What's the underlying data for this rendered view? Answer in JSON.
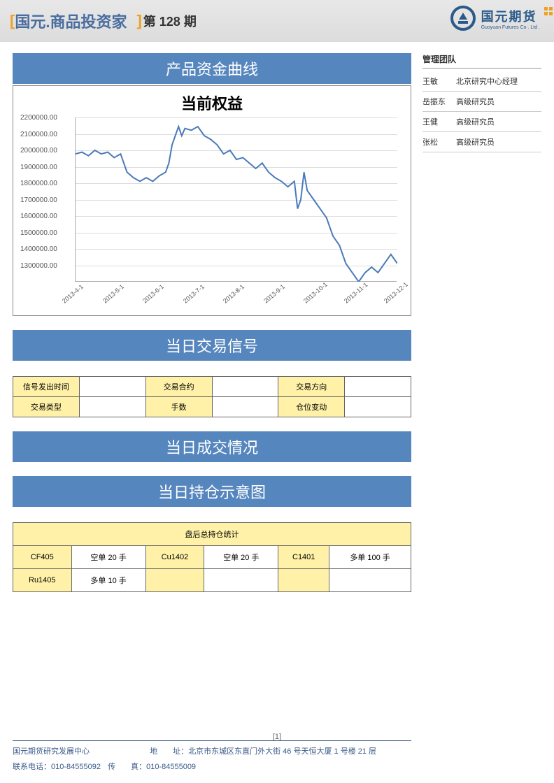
{
  "header": {
    "bracket_open": "[",
    "title": "国元.商品投资家",
    "bracket_close": "]",
    "issue": "第 128 期",
    "logo_cn": "国元期货",
    "logo_en": "Guoyuan Futures Co . Ltd ."
  },
  "sidebar": {
    "title": "管理团队",
    "members": [
      {
        "name": "王敏",
        "role": "北京研究中心经理"
      },
      {
        "name": "岳振东",
        "role": "高级研究员"
      },
      {
        "name": "王健",
        "role": "高级研究员"
      },
      {
        "name": "张松",
        "role": "高级研究员"
      }
    ]
  },
  "section1_title": "产品资金曲线",
  "chart": {
    "type": "line",
    "title": "当前权益",
    "ylim": [
      1300000,
      2200000
    ],
    "ytick_step": 100000,
    "y_labels": [
      "2200000.00",
      "2100000.00",
      "2000000.00",
      "1900000.00",
      "1800000.00",
      "1700000.00",
      "1600000.00",
      "1500000.00",
      "1400000.00",
      "1300000.00"
    ],
    "x_labels": [
      "2013-4-1",
      "2013-5-1",
      "2013-6-1",
      "2013-7-1",
      "2013-8-1",
      "2013-9-1",
      "2013-10-1",
      "2013-11-1",
      "2013-12-1"
    ],
    "line_color": "#4a7ab8",
    "grid_color": "#dddddd",
    "background_color": "#ffffff",
    "title_fontsize": 22,
    "label_fontsize": 10,
    "data": [
      [
        0.0,
        2000000
      ],
      [
        0.02,
        2010000
      ],
      [
        0.04,
        1990000
      ],
      [
        0.06,
        2020000
      ],
      [
        0.08,
        2000000
      ],
      [
        0.1,
        2010000
      ],
      [
        0.12,
        1980000
      ],
      [
        0.14,
        2000000
      ],
      [
        0.15,
        1950000
      ],
      [
        0.16,
        1900000
      ],
      [
        0.18,
        1870000
      ],
      [
        0.2,
        1850000
      ],
      [
        0.22,
        1870000
      ],
      [
        0.24,
        1850000
      ],
      [
        0.26,
        1880000
      ],
      [
        0.28,
        1900000
      ],
      [
        0.29,
        1950000
      ],
      [
        0.3,
        2050000
      ],
      [
        0.31,
        2100000
      ],
      [
        0.32,
        2150000
      ],
      [
        0.33,
        2100000
      ],
      [
        0.34,
        2140000
      ],
      [
        0.36,
        2130000
      ],
      [
        0.38,
        2150000
      ],
      [
        0.4,
        2100000
      ],
      [
        0.42,
        2080000
      ],
      [
        0.44,
        2050000
      ],
      [
        0.46,
        2000000
      ],
      [
        0.48,
        2020000
      ],
      [
        0.5,
        1970000
      ],
      [
        0.52,
        1980000
      ],
      [
        0.54,
        1950000
      ],
      [
        0.56,
        1920000
      ],
      [
        0.58,
        1950000
      ],
      [
        0.6,
        1900000
      ],
      [
        0.62,
        1870000
      ],
      [
        0.64,
        1850000
      ],
      [
        0.66,
        1820000
      ],
      [
        0.68,
        1850000
      ],
      [
        0.69,
        1700000
      ],
      [
        0.7,
        1750000
      ],
      [
        0.71,
        1900000
      ],
      [
        0.72,
        1800000
      ],
      [
        0.74,
        1750000
      ],
      [
        0.76,
        1700000
      ],
      [
        0.78,
        1650000
      ],
      [
        0.8,
        1550000
      ],
      [
        0.82,
        1500000
      ],
      [
        0.84,
        1400000
      ],
      [
        0.86,
        1350000
      ],
      [
        0.88,
        1300000
      ],
      [
        0.9,
        1350000
      ],
      [
        0.92,
        1380000
      ],
      [
        0.94,
        1350000
      ],
      [
        0.96,
        1400000
      ],
      [
        0.98,
        1450000
      ],
      [
        1.0,
        1400000
      ]
    ]
  },
  "section2_title": "当日交易信号",
  "signal_table": {
    "row1": [
      "信号发出时间",
      "",
      "交易合约",
      "",
      "交易方向",
      ""
    ],
    "row2": [
      "交易类型",
      "",
      "手数",
      "",
      "仓位变动",
      ""
    ]
  },
  "section3_title": "当日成交情况",
  "section4_title": "当日持仓示意图",
  "holding_table": {
    "header": "盘后总持仓统计",
    "rows": [
      [
        "CF405",
        "空单 20 手",
        "Cu1402",
        "空单 20 手",
        "C1401",
        "多单 100 手"
      ],
      [
        "Ru1405",
        "多单 10 手",
        "",
        "",
        "",
        ""
      ]
    ]
  },
  "page_number": "[1]",
  "footer": {
    "org": "国元期货研究发展中心",
    "addr_label": "地　　址：",
    "addr": "北京市东城区东直门外大街 46 号天恒大厦 1 号楼 21 层",
    "tel_label": "联系电话：",
    "tel": "010-84555092",
    "fax_label": "传　　真：",
    "fax": "010-84555009"
  },
  "colors": {
    "header_blue": "#5686be",
    "accent_orange": "#f0a020",
    "yellow_cell": "#fff2a8",
    "logo_blue": "#2a5a8a"
  }
}
